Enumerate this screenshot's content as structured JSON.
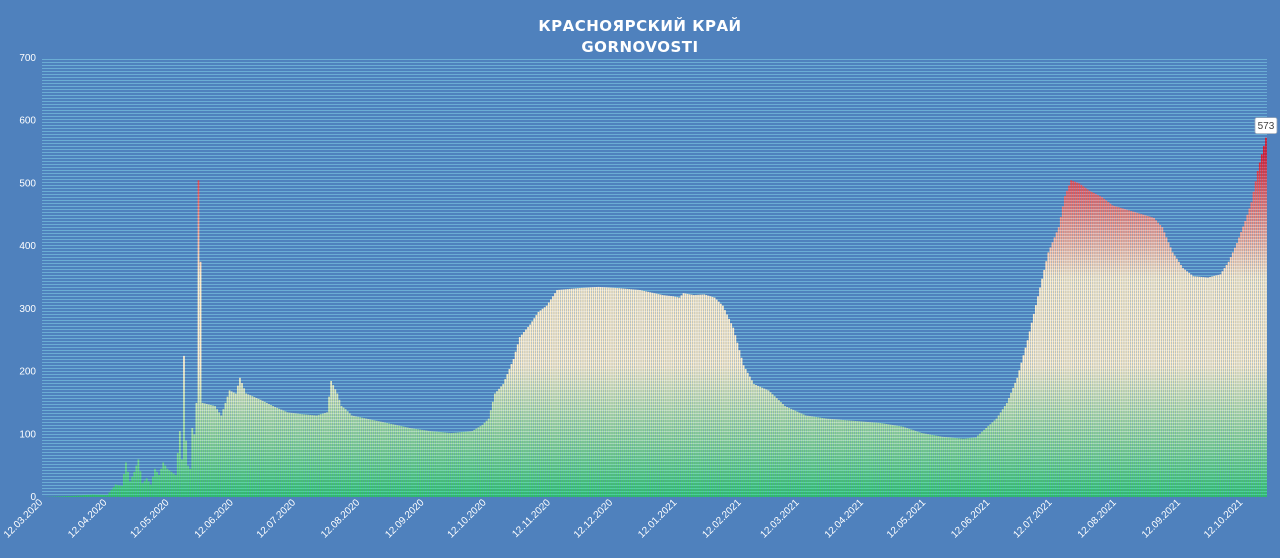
{
  "chart_data": {
    "type": "bar",
    "title": "КРАСНОЯРСКИЙ КРАЙ",
    "subtitle": "GORNOVOSTI",
    "xlabel": "",
    "ylabel": "",
    "ylim": [
      0,
      700
    ],
    "yticks": [
      "0",
      "100",
      "200",
      "300",
      "400",
      "500",
      "600",
      "700"
    ],
    "x_start": "2020-03-12",
    "x_end": "2021-10-23",
    "xticks": [
      {
        "date": "2020-03-12",
        "label": "12.03.2020"
      },
      {
        "date": "2020-04-12",
        "label": "12.04.2020"
      },
      {
        "date": "2020-05-12",
        "label": "12.05.2020"
      },
      {
        "date": "2020-06-12",
        "label": "12.06.2020"
      },
      {
        "date": "2020-07-12",
        "label": "12.07.2020"
      },
      {
        "date": "2020-08-12",
        "label": "12.08.2020"
      },
      {
        "date": "2020-09-12",
        "label": "12.09.2020"
      },
      {
        "date": "2020-10-12",
        "label": "12.10.2020"
      },
      {
        "date": "2020-11-12",
        "label": "12.11.2020"
      },
      {
        "date": "2020-12-12",
        "label": "12.12.2020"
      },
      {
        "date": "2021-01-12",
        "label": "12.01.2021"
      },
      {
        "date": "2021-02-12",
        "label": "12.02.2021"
      },
      {
        "date": "2021-03-12",
        "label": "12.03.2021"
      },
      {
        "date": "2021-04-12",
        "label": "12.04.2021"
      },
      {
        "date": "2021-05-12",
        "label": "12.05.2021"
      },
      {
        "date": "2021-06-12",
        "label": "12.06.2021"
      },
      {
        "date": "2021-07-12",
        "label": "12.07.2021"
      },
      {
        "date": "2021-08-12",
        "label": "12.08.2021"
      },
      {
        "date": "2021-09-12",
        "label": "12.09.2021"
      },
      {
        "date": "2021-10-12",
        "label": "12.10.2021"
      }
    ],
    "keypoints": [
      [
        "2020-03-12",
        0
      ],
      [
        "2020-03-20",
        1
      ],
      [
        "2020-03-28",
        2
      ],
      [
        "2020-04-05",
        4
      ],
      [
        "2020-04-12",
        3
      ],
      [
        "2020-04-16",
        20
      ],
      [
        "2020-04-19",
        18
      ],
      [
        "2020-04-21",
        55
      ],
      [
        "2020-04-23",
        25
      ],
      [
        "2020-04-25",
        40
      ],
      [
        "2020-04-27",
        60
      ],
      [
        "2020-04-29",
        22
      ],
      [
        "2020-05-01",
        30
      ],
      [
        "2020-05-03",
        20
      ],
      [
        "2020-05-05",
        45
      ],
      [
        "2020-05-07",
        35
      ],
      [
        "2020-05-09",
        55
      ],
      [
        "2020-05-11",
        45
      ],
      [
        "2020-05-13",
        40
      ],
      [
        "2020-05-15",
        35
      ],
      [
        "2020-05-17",
        105
      ],
      [
        "2020-05-18",
        60
      ],
      [
        "2020-05-19",
        225
      ],
      [
        "2020-05-20",
        90
      ],
      [
        "2020-05-21",
        50
      ],
      [
        "2020-05-22",
        45
      ],
      [
        "2020-05-23",
        110
      ],
      [
        "2020-05-24",
        100
      ],
      [
        "2020-05-25",
        150
      ],
      [
        "2020-05-26",
        505
      ],
      [
        "2020-05-27",
        375
      ],
      [
        "2020-05-28",
        150
      ],
      [
        "2020-06-03",
        145
      ],
      [
        "2020-06-06",
        130
      ],
      [
        "2020-06-08",
        150
      ],
      [
        "2020-06-10",
        170
      ],
      [
        "2020-06-13",
        165
      ],
      [
        "2020-06-15",
        190
      ],
      [
        "2020-06-18",
        165
      ],
      [
        "2020-06-25",
        155
      ],
      [
        "2020-07-01",
        145
      ],
      [
        "2020-07-08",
        135
      ],
      [
        "2020-07-15",
        132
      ],
      [
        "2020-07-22",
        130
      ],
      [
        "2020-07-27",
        135
      ],
      [
        "2020-07-29",
        185
      ],
      [
        "2020-08-01",
        165
      ],
      [
        "2020-08-03",
        145
      ],
      [
        "2020-08-05",
        140
      ],
      [
        "2020-08-08",
        130
      ],
      [
        "2020-08-15",
        125
      ],
      [
        "2020-08-25",
        118
      ],
      [
        "2020-09-05",
        110
      ],
      [
        "2020-09-15",
        105
      ],
      [
        "2020-09-25",
        102
      ],
      [
        "2020-10-05",
        105
      ],
      [
        "2020-10-10",
        115
      ],
      [
        "2020-10-13",
        125
      ],
      [
        "2020-10-16",
        165
      ],
      [
        "2020-10-20",
        180
      ],
      [
        "2020-10-25",
        220
      ],
      [
        "2020-10-28",
        255
      ],
      [
        "2020-11-02",
        275
      ],
      [
        "2020-11-06",
        295
      ],
      [
        "2020-11-10",
        305
      ],
      [
        "2020-11-15",
        330
      ],
      [
        "2020-11-25",
        333
      ],
      [
        "2020-12-05",
        335
      ],
      [
        "2020-12-15",
        333
      ],
      [
        "2020-12-25",
        330
      ],
      [
        "2021-01-05",
        322
      ],
      [
        "2021-01-10",
        320
      ],
      [
        "2021-01-13",
        318
      ],
      [
        "2021-01-15",
        325
      ],
      [
        "2021-01-20",
        322
      ],
      [
        "2021-01-25",
        323
      ],
      [
        "2021-01-30",
        318
      ],
      [
        "2021-02-03",
        305
      ],
      [
        "2021-02-08",
        270
      ],
      [
        "2021-02-13",
        210
      ],
      [
        "2021-02-18",
        180
      ],
      [
        "2021-02-25",
        170
      ],
      [
        "2021-03-05",
        145
      ],
      [
        "2021-03-15",
        130
      ],
      [
        "2021-03-25",
        125
      ],
      [
        "2021-04-05",
        122
      ],
      [
        "2021-04-20",
        118
      ],
      [
        "2021-05-01",
        112
      ],
      [
        "2021-05-10",
        102
      ],
      [
        "2021-05-20",
        96
      ],
      [
        "2021-05-30",
        93
      ],
      [
        "2021-06-05",
        95
      ],
      [
        "2021-06-10",
        110
      ],
      [
        "2021-06-15",
        125
      ],
      [
        "2021-06-20",
        150
      ],
      [
        "2021-06-25",
        190
      ],
      [
        "2021-06-30",
        250
      ],
      [
        "2021-07-05",
        320
      ],
      [
        "2021-07-10",
        390
      ],
      [
        "2021-07-15",
        430
      ],
      [
        "2021-07-18",
        480
      ],
      [
        "2021-07-21",
        505
      ],
      [
        "2021-07-25",
        500
      ],
      [
        "2021-07-30",
        488
      ],
      [
        "2021-08-05",
        478
      ],
      [
        "2021-08-10",
        465
      ],
      [
        "2021-08-20",
        455
      ],
      [
        "2021-08-30",
        445
      ],
      [
        "2021-09-03",
        430
      ],
      [
        "2021-09-08",
        390
      ],
      [
        "2021-09-13",
        365
      ],
      [
        "2021-09-18",
        352
      ],
      [
        "2021-09-25",
        350
      ],
      [
        "2021-10-01",
        355
      ],
      [
        "2021-10-05",
        375
      ],
      [
        "2021-10-09",
        405
      ],
      [
        "2021-10-13",
        440
      ],
      [
        "2021-10-16",
        470
      ],
      [
        "2021-10-19",
        520
      ],
      [
        "2021-10-23",
        573
      ]
    ],
    "last_value_label": "573",
    "colors": {
      "background": "#4f81bd",
      "high": "#d4192a",
      "mid": "#fae9c4",
      "low": "#2ebf64",
      "text": "#ffffff"
    }
  }
}
